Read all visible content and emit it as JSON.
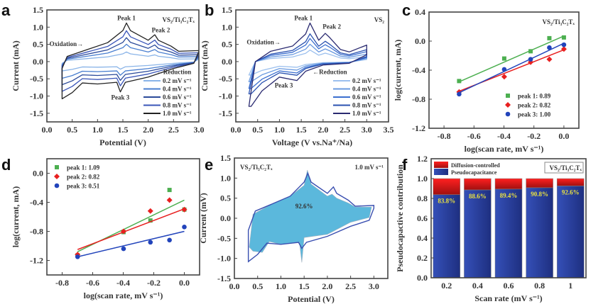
{
  "chart_data": [
    {
      "id": "a",
      "type": "line",
      "panel_label": "a",
      "title": "VS₂/Ti₃C₂Tₓ",
      "xlabel": "Potential (V)",
      "ylabel": "Current (mA)",
      "xlim": [
        0.0,
        3.0
      ],
      "ylim": [
        -1.75,
        1.5
      ],
      "xticks": [
        "0.0",
        "0.5",
        "1.0",
        "1.5",
        "2.0",
        "2.5",
        "3.0"
      ],
      "yticks": [
        "1.5",
        "1.0",
        "0.5",
        "0.0",
        "-0.5",
        "-1.0",
        "-1.5"
      ],
      "annotations": [
        "Peak 1",
        "Peak 2",
        "Peak 3",
        "Oxidation→",
        "←Reduction"
      ],
      "legend_placement": "bottom-right",
      "series": [
        {
          "name": "0.2 mV s⁻¹",
          "color": "#8ab4e8",
          "scale": 0.25
        },
        {
          "name": "0.4 mV s⁻¹",
          "color": "#4a7fd0",
          "scale": 0.45
        },
        {
          "name": "0.6 mV s⁻¹",
          "color": "#2b4a9a",
          "scale": 0.62
        },
        {
          "name": "0.8 mV s⁻¹",
          "color": "#3a55b8",
          "scale": 0.8
        },
        {
          "name": "1.0 mV s⁻¹",
          "color": "#222222",
          "scale": 1.0
        }
      ],
      "curve_upper": [
        [
          0.3,
          -0.2
        ],
        [
          0.4,
          0.15
        ],
        [
          0.8,
          0.35
        ],
        [
          1.2,
          0.55
        ],
        [
          1.5,
          0.9
        ],
        [
          1.57,
          1.12
        ],
        [
          1.65,
          0.9
        ],
        [
          2.0,
          0.62
        ],
        [
          2.13,
          0.78
        ],
        [
          2.2,
          0.62
        ],
        [
          2.45,
          0.45
        ],
        [
          2.6,
          0.3
        ],
        [
          3.0,
          0.32
        ]
      ],
      "curve_lower": [
        [
          3.0,
          0.3
        ],
        [
          2.9,
          -0.05
        ],
        [
          2.5,
          -0.2
        ],
        [
          2.0,
          -0.45
        ],
        [
          1.55,
          -0.6
        ],
        [
          1.45,
          -0.88
        ],
        [
          1.38,
          -0.6
        ],
        [
          1.0,
          -0.65
        ],
        [
          0.7,
          -0.62
        ],
        [
          0.5,
          -0.9
        ],
        [
          0.3,
          -1.08
        ]
      ]
    },
    {
      "id": "b",
      "type": "line",
      "panel_label": "b",
      "title": "VS₂",
      "xlabel": "Voltage (V  vs.Na⁺/Na)",
      "ylabel": "Current (mA)",
      "xlim": [
        0.0,
        3.5
      ],
      "ylim": [
        -1.75,
        1.5
      ],
      "xticks": [
        "0.0",
        "0.5",
        "1.0",
        "1.5",
        "2.0",
        "2.5",
        "3.0",
        "3.5"
      ],
      "yticks": [
        "1.5",
        "1.0",
        "0.5",
        "0.0",
        "-0.5",
        "-1.0",
        "-1.5"
      ],
      "annotations": [
        "Peak 1",
        "Peak 2",
        "Peak 3",
        "Oxidation→",
        "←Reduction"
      ],
      "legend_placement": "bottom-right",
      "series": [
        {
          "name": "0.2 mV s⁻¹",
          "color": "#9cc0ee",
          "scale": 0.3
        },
        {
          "name": "0.4 mV s⁻¹",
          "color": "#6a9ae0",
          "scale": 0.45
        },
        {
          "name": "0.6 mV s⁻¹",
          "color": "#3b6fcf",
          "scale": 0.6
        },
        {
          "name": "0.8 mV s⁻¹",
          "color": "#2a52b0",
          "scale": 0.72
        },
        {
          "name": "1.0 mV s⁻¹",
          "color": "#2a2a70",
          "scale": 1.0
        }
      ],
      "curve_upper": [
        [
          0.3,
          -1.3
        ],
        [
          0.45,
          0.0
        ],
        [
          0.8,
          0.3
        ],
        [
          1.3,
          0.45
        ],
        [
          1.6,
          0.8
        ],
        [
          1.7,
          1.12
        ],
        [
          1.9,
          0.62
        ],
        [
          2.05,
          0.82
        ],
        [
          2.15,
          0.7
        ],
        [
          2.4,
          0.35
        ],
        [
          2.6,
          0.28
        ],
        [
          3.0,
          0.48
        ]
      ],
      "curve_lower": [
        [
          3.0,
          0.2
        ],
        [
          2.6,
          -0.05
        ],
        [
          2.0,
          -0.1
        ],
        [
          1.6,
          -0.28
        ],
        [
          1.4,
          -0.55
        ],
        [
          1.0,
          -0.45
        ],
        [
          0.6,
          -0.85
        ],
        [
          0.35,
          -1.3
        ]
      ]
    },
    {
      "id": "c",
      "type": "scatter",
      "panel_label": "c",
      "title": "VS₂/Ti₃C₂Tₓ",
      "xlabel": "log(scan rate, mV s⁻¹)",
      "ylabel": "log(current, mA)",
      "xlim": [
        -0.9,
        0.1
      ],
      "ylim": [
        -1.2,
        0.4
      ],
      "xticks": [
        "-0.8",
        "-0.6",
        "-0.4",
        "-0.2",
        "0.0"
      ],
      "yticks": [
        "0.4",
        "0.0",
        "-0.4",
        "-0.8",
        "-1.2"
      ],
      "legend_placement": "bottom-right",
      "x": [
        -0.699,
        -0.398,
        -0.222,
        -0.097,
        0.0
      ],
      "series": [
        {
          "name": "peak 1: 0.89",
          "color": "#4caf50",
          "marker": "square",
          "values": [
            -0.55,
            -0.24,
            -0.14,
            0.04,
            0.05
          ],
          "fit": [
            -0.56,
            0.07
          ]
        },
        {
          "name": "peak 2: 0.82",
          "color": "#e82020",
          "marker": "diamond",
          "values": [
            -0.7,
            -0.49,
            -0.29,
            -0.25,
            -0.11
          ],
          "fit": [
            -0.69,
            -0.12
          ]
        },
        {
          "name": "peak 3: 1.00",
          "color": "#2244bb",
          "marker": "circle",
          "values": [
            -0.73,
            -0.39,
            -0.25,
            -0.09,
            -0.05
          ],
          "fit": [
            -0.71,
            -0.03
          ]
        }
      ]
    },
    {
      "id": "d",
      "type": "scatter",
      "panel_label": "d",
      "title": "",
      "xlabel": "log(scan rate, mV s⁻¹)",
      "ylabel": "log(current, mA)",
      "xlim": [
        -0.9,
        0.1
      ],
      "ylim": [
        -1.4,
        0.2
      ],
      "xticks": [
        "-0.8",
        "-0.6",
        "-0.4",
        "-0.2",
        "0.0"
      ],
      "yticks": [
        "0.0",
        "-0.4",
        "-0.8",
        "-1.2"
      ],
      "legend_placement": "top-left",
      "x": [
        -0.699,
        -0.398,
        -0.222,
        -0.097,
        0.0
      ],
      "series": [
        {
          "name": "peak 1: 1.09",
          "color": "#4caf50",
          "marker": "square",
          "values": [
            -1.13,
            -0.81,
            -0.65,
            -0.23,
            -0.5
          ],
          "fit": [
            -1.08,
            -0.37
          ]
        },
        {
          "name": "peak 2: 0.82",
          "color": "#e82020",
          "marker": "diamond",
          "values": [
            -1.12,
            -0.8,
            -0.52,
            -0.37,
            -0.5
          ],
          "fit": [
            -1.05,
            -0.49
          ]
        },
        {
          "name": "peak 3: 0.51",
          "color": "#2244bb",
          "marker": "circle",
          "values": [
            -1.15,
            -1.04,
            -0.95,
            -0.92,
            -0.74
          ],
          "fit": [
            -1.15,
            -0.8
          ]
        }
      ]
    },
    {
      "id": "e",
      "type": "area",
      "panel_label": "e",
      "title": "VS₂/Ti₃C₂Tₓ",
      "subtitle": "1.0 mV s⁻¹",
      "xlabel": "Potential (V)",
      "ylabel": "Current (mV)",
      "xlim": [
        0.0,
        3.3
      ],
      "ylim": [
        -1.5,
        1.5
      ],
      "xticks": [
        "0.0",
        "0.5",
        "1.0",
        "1.5",
        "2.0",
        "2.5",
        "3.0"
      ],
      "yticks": [
        "1.5",
        "1.0",
        "0.5",
        "0.0",
        "-0.5",
        "-1.0",
        "-1.5"
      ],
      "annotations": [
        "92.6%"
      ],
      "fill_color": "#5bb8dc",
      "line_color": "#3a4fb0",
      "cv_outline": [
        [
          0.3,
          -1.08
        ],
        [
          0.3,
          -0.3
        ],
        [
          0.45,
          0.18
        ],
        [
          0.8,
          0.35
        ],
        [
          1.2,
          0.55
        ],
        [
          1.5,
          0.9
        ],
        [
          1.58,
          1.12
        ],
        [
          1.65,
          0.9
        ],
        [
          2.0,
          0.62
        ],
        [
          2.13,
          0.78
        ],
        [
          2.2,
          0.62
        ],
        [
          2.45,
          0.45
        ],
        [
          2.6,
          0.3
        ],
        [
          3.0,
          0.32
        ],
        [
          3.0,
          0.25
        ],
        [
          2.9,
          -0.05
        ],
        [
          2.5,
          -0.2
        ],
        [
          2.0,
          -0.45
        ],
        [
          1.55,
          -0.6
        ],
        [
          1.45,
          -0.75
        ],
        [
          1.38,
          -0.6
        ],
        [
          1.0,
          -0.65
        ],
        [
          0.7,
          -0.62
        ],
        [
          0.5,
          -0.9
        ],
        [
          0.3,
          -1.08
        ]
      ],
      "capacitive_area": [
        [
          0.32,
          -0.72
        ],
        [
          0.4,
          0.1
        ],
        [
          0.8,
          0.35
        ],
        [
          1.2,
          0.55
        ],
        [
          1.5,
          0.82
        ],
        [
          1.57,
          1.2
        ],
        [
          1.65,
          0.85
        ],
        [
          2.0,
          0.55
        ],
        [
          2.1,
          0.6
        ],
        [
          2.2,
          0.5
        ],
        [
          2.45,
          0.38
        ],
        [
          2.6,
          0.28
        ],
        [
          2.95,
          0.28
        ],
        [
          2.9,
          0.02
        ],
        [
          2.5,
          -0.1
        ],
        [
          2.0,
          -0.4
        ],
        [
          1.5,
          -0.48
        ],
        [
          1.45,
          -1.1
        ],
        [
          1.4,
          -0.6
        ],
        [
          1.0,
          -0.65
        ],
        [
          0.75,
          -0.58
        ],
        [
          0.6,
          -0.85
        ],
        [
          0.4,
          -0.82
        ],
        [
          0.32,
          -0.72
        ]
      ]
    },
    {
      "id": "f",
      "type": "bar",
      "panel_label": "f",
      "title": "VS₂/Ti₃C₂Tₓ",
      "xlabel": "Scan rate (mV s⁻¹)",
      "ylabel": "Pseudocapactive contribution",
      "ylim": [
        0.0,
        1.2
      ],
      "yticks": [
        "1.2",
        "1.0",
        "0.8",
        "0.6",
        "0.4",
        "0.2",
        "0.0"
      ],
      "categories": [
        "0.2",
        "0.4",
        "0.6",
        "0.8",
        "1"
      ],
      "legend_placement": "top-left",
      "series": [
        {
          "name": "Pseudocapacitance",
          "color": "#2a3f9a",
          "values": [
            0.838,
            0.886,
            0.894,
            0.908,
            0.926
          ]
        },
        {
          "name": "Diffusion-controlled",
          "color": "#e82020",
          "values": [
            0.162,
            0.114,
            0.106,
            0.092,
            0.074
          ]
        }
      ],
      "data_labels": [
        "83.8%",
        "88.6%",
        "89.4%",
        "90.8%",
        "92.6%"
      ],
      "label_color": "#e8e040"
    }
  ]
}
